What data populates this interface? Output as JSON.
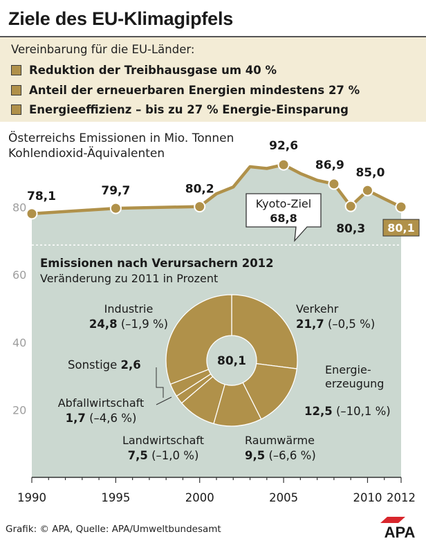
{
  "title": "Ziele des EU-Klimagipfels",
  "agreement": {
    "heading": "Vereinbarung für die EU-Länder:",
    "items": [
      "Reduktion der Treibhausgase um 40 %",
      "Anteil der erneuerbaren Energien mindestens 27 %",
      "Energieeffizienz – bis zu 27 % Energie-Einsparung"
    ]
  },
  "emissions_heading": [
    "Österreichs Emissionen in Mio. Tonnen",
    "Kohlendioxid-Äquivalenten"
  ],
  "colors": {
    "gold": "#b0914a",
    "area": "#cbd8d0",
    "background_band": "#f3ecd6",
    "axis_label": "#9e9e9e",
    "logo_red": "#d8262c"
  },
  "chart_data": [
    {
      "type": "area",
      "x": [
        1990,
        1995,
        2000,
        2001,
        2002,
        2003,
        2004,
        2005,
        2006,
        2007,
        2008,
        2009,
        2010,
        2011,
        2012
      ],
      "series": [
        {
          "values": [
            78.1,
            79.7,
            80.2,
            84.0,
            86.0,
            92.0,
            91.5,
            92.6,
            90.0,
            88.0,
            86.9,
            80.3,
            85.0,
            82.5,
            80.1
          ]
        }
      ],
      "point_labels": [
        {
          "year": 1990,
          "text": "78,1",
          "value": 78.1
        },
        {
          "year": 1995,
          "text": "79,7",
          "value": 79.7
        },
        {
          "year": 2000,
          "text": "80,2",
          "value": 80.2
        },
        {
          "year": 2005,
          "text": "92,6",
          "value": 92.6
        },
        {
          "year": 2008,
          "text": "86,9",
          "value": 86.9
        },
        {
          "year": 2009,
          "text": "80,3",
          "value": 80.3
        },
        {
          "year": 2010,
          "text": "85,0",
          "value": 85.0
        },
        {
          "year": 2012,
          "text": "80,1",
          "value": 80.1
        }
      ],
      "x_ticks": [
        "1990",
        "1995",
        "2000",
        "2005",
        "2010",
        "2012"
      ],
      "y_ticks": [
        "20",
        "40",
        "60",
        "80"
      ],
      "ylim": [
        0,
        100
      ],
      "xlim": [
        1990,
        2012
      ],
      "kyoto": {
        "label": "Kyoto-Ziel",
        "value_text": "68,8",
        "value": 68.8
      },
      "last_value_badge": "80,1"
    },
    {
      "type": "pie",
      "title": "Emissionen nach Verursachern 2012",
      "subtitle": "Veränderung zu 2011 in Prozent",
      "center_label": "80,1",
      "slices": [
        {
          "name": "Verkehr",
          "value": 21.7,
          "value_text": "21,7",
          "change_text": "(–0,5 %)"
        },
        {
          "name": "Energie-\nerzeugung",
          "value": 12.5,
          "value_text": "12,5",
          "change_text": "(–10,1 %)"
        },
        {
          "name": "Raumwärme",
          "value": 9.5,
          "value_text": "9,5",
          "change_text": "(–6,6 %)"
        },
        {
          "name": "Landwirtschaft",
          "value": 7.5,
          "value_text": "7,5",
          "change_text": "(–1,0 %)"
        },
        {
          "name": "Abfallwirtschaft",
          "value": 1.7,
          "value_text": "1,7",
          "change_text": "(–4,6 %)"
        },
        {
          "name": "Sonstige",
          "value": 2.6,
          "value_text": "2,6",
          "change_text": ""
        },
        {
          "name": "Industrie",
          "value": 24.8,
          "value_text": "24,8",
          "change_text": "(–1,9 %)"
        }
      ]
    }
  ],
  "footer": "Grafik: © APA, Quelle: APA/Umweltbundesamt",
  "logo": "APA"
}
